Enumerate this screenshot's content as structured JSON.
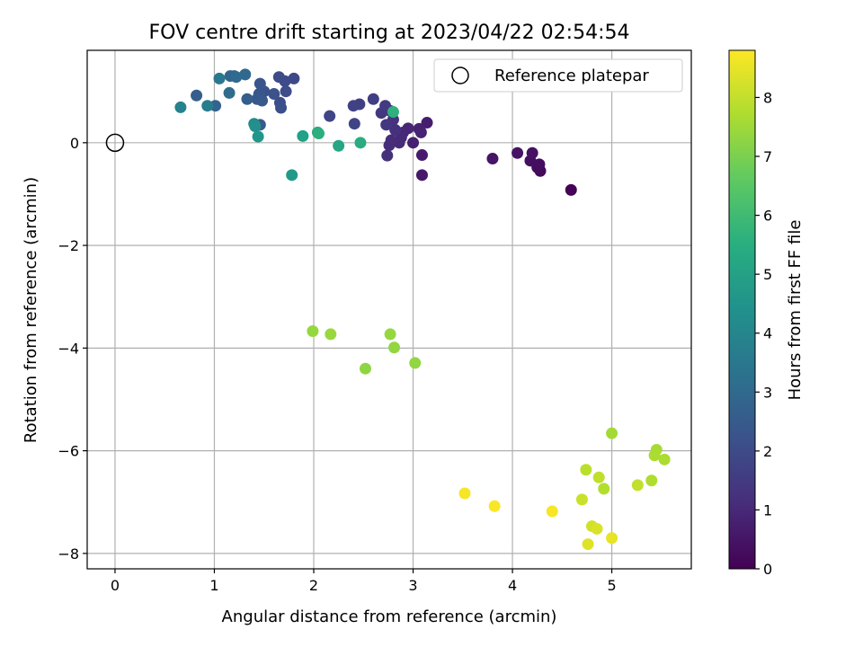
{
  "chart_data": {
    "type": "scatter",
    "title": "FOV centre drift starting at 2023/04/22 02:54:54",
    "xlabel": "Angular distance from reference (arcmin)",
    "ylabel": "Rotation from reference (arcmin)",
    "xlim": [
      -0.28,
      5.8
    ],
    "ylim": [
      -8.3,
      1.8
    ],
    "xticks": [
      "0",
      "1",
      "2",
      "3",
      "4",
      "5"
    ],
    "yticks": [
      "−8",
      "−6",
      "−4",
      "−2",
      "0"
    ],
    "grid": true,
    "legend": {
      "placement": "top-right",
      "entries": [
        "Reference platepar"
      ]
    },
    "reference_point": {
      "x": 0,
      "y": 0
    },
    "colorbar": {
      "label": "Hours from first FF file",
      "range": [
        0,
        8.8
      ],
      "ticks": [
        "0",
        "1",
        "2",
        "3",
        "4",
        "5",
        "6",
        "7",
        "8"
      ],
      "colormap": "viridis"
    },
    "points": [
      {
        "x": 4.59,
        "y": -0.92,
        "h": 0.05
      },
      {
        "x": 4.28,
        "y": -0.55,
        "h": 0.2
      },
      {
        "x": 4.25,
        "y": -0.48,
        "h": 0.25
      },
      {
        "x": 4.27,
        "y": -0.42,
        "h": 0.3
      },
      {
        "x": 4.18,
        "y": -0.35,
        "h": 0.35
      },
      {
        "x": 4.2,
        "y": -0.2,
        "h": 0.4
      },
      {
        "x": 4.05,
        "y": -0.2,
        "h": 0.45
      },
      {
        "x": 3.8,
        "y": -0.31,
        "h": 0.5
      },
      {
        "x": 3.09,
        "y": -0.63,
        "h": 0.6
      },
      {
        "x": 3.09,
        "y": -0.24,
        "h": 0.65
      },
      {
        "x": 3.14,
        "y": 0.39,
        "h": 0.7
      },
      {
        "x": 3.0,
        "y": 0.0,
        "h": 0.75
      },
      {
        "x": 3.06,
        "y": 0.27,
        "h": 0.8
      },
      {
        "x": 3.08,
        "y": 0.2,
        "h": 0.85
      },
      {
        "x": 2.95,
        "y": 0.28,
        "h": 0.9
      },
      {
        "x": 2.9,
        "y": 0.2,
        "h": 0.95
      },
      {
        "x": 2.88,
        "y": 0.1,
        "h": 1.0
      },
      {
        "x": 2.86,
        "y": 0.0,
        "h": 1.05
      },
      {
        "x": 2.78,
        "y": 0.05,
        "h": 1.1
      },
      {
        "x": 2.76,
        "y": -0.05,
        "h": 1.15
      },
      {
        "x": 2.74,
        "y": -0.25,
        "h": 1.2
      },
      {
        "x": 2.82,
        "y": 0.25,
        "h": 1.25
      },
      {
        "x": 2.8,
        "y": 0.45,
        "h": 1.3
      },
      {
        "x": 2.77,
        "y": 0.62,
        "h": 1.35
      },
      {
        "x": 2.73,
        "y": 0.35,
        "h": 1.4
      },
      {
        "x": 2.68,
        "y": 0.58,
        "h": 1.45
      },
      {
        "x": 2.72,
        "y": 0.72,
        "h": 1.5
      },
      {
        "x": 2.6,
        "y": 0.85,
        "h": 1.6
      },
      {
        "x": 2.46,
        "y": 0.75,
        "h": 1.65
      },
      {
        "x": 2.4,
        "y": 0.72,
        "h": 1.7
      },
      {
        "x": 2.41,
        "y": 0.37,
        "h": 1.75
      },
      {
        "x": 2.16,
        "y": 0.52,
        "h": 1.8
      },
      {
        "x": 1.8,
        "y": 1.25,
        "h": 1.9
      },
      {
        "x": 1.71,
        "y": 1.2,
        "h": 1.95
      },
      {
        "x": 1.65,
        "y": 1.28,
        "h": 2.0
      },
      {
        "x": 1.72,
        "y": 1.0,
        "h": 2.05
      },
      {
        "x": 1.66,
        "y": 0.78,
        "h": 2.1
      },
      {
        "x": 1.67,
        "y": 0.68,
        "h": 2.15
      },
      {
        "x": 1.6,
        "y": 0.95,
        "h": 2.2
      },
      {
        "x": 1.5,
        "y": 1.0,
        "h": 2.25
      },
      {
        "x": 1.46,
        "y": 1.15,
        "h": 2.3
      },
      {
        "x": 1.45,
        "y": 0.95,
        "h": 2.35
      },
      {
        "x": 1.43,
        "y": 0.85,
        "h": 2.4
      },
      {
        "x": 1.48,
        "y": 0.82,
        "h": 2.45
      },
      {
        "x": 1.46,
        "y": 0.35,
        "h": 2.5
      },
      {
        "x": 1.33,
        "y": 0.85,
        "h": 2.6
      },
      {
        "x": 1.2,
        "y": 1.3,
        "h": 2.75
      },
      {
        "x": 1.16,
        "y": 1.3,
        "h": 2.85
      },
      {
        "x": 1.31,
        "y": 1.33,
        "h": 2.95
      },
      {
        "x": 1.22,
        "y": 1.28,
        "h": 3.0
      },
      {
        "x": 0.82,
        "y": 0.92,
        "h": 2.6
      },
      {
        "x": 1.01,
        "y": 0.72,
        "h": 2.8
      },
      {
        "x": 1.15,
        "y": 0.97,
        "h": 3.1
      },
      {
        "x": 1.05,
        "y": 1.25,
        "h": 3.5
      },
      {
        "x": 0.93,
        "y": 0.72,
        "h": 3.7
      },
      {
        "x": 0.66,
        "y": 0.69,
        "h": 3.9
      },
      {
        "x": 1.4,
        "y": 0.37,
        "h": 4.2
      },
      {
        "x": 1.41,
        "y": 0.32,
        "h": 4.4
      },
      {
        "x": 1.44,
        "y": 0.12,
        "h": 4.6
      },
      {
        "x": 1.78,
        "y": -0.63,
        "h": 4.7
      },
      {
        "x": 1.89,
        "y": 0.13,
        "h": 5.0
      },
      {
        "x": 2.04,
        "y": 0.2,
        "h": 5.3
      },
      {
        "x": 2.05,
        "y": 0.18,
        "h": 5.5
      },
      {
        "x": 2.25,
        "y": -0.06,
        "h": 5.2
      },
      {
        "x": 2.47,
        "y": 0.0,
        "h": 5.4
      },
      {
        "x": 2.8,
        "y": 0.6,
        "h": 5.6
      },
      {
        "x": 1.99,
        "y": -3.67,
        "h": 7.4
      },
      {
        "x": 2.17,
        "y": -3.73,
        "h": 7.45
      },
      {
        "x": 2.77,
        "y": -3.73,
        "h": 7.4
      },
      {
        "x": 2.81,
        "y": -3.99,
        "h": 7.35
      },
      {
        "x": 2.52,
        "y": -4.4,
        "h": 7.3
      },
      {
        "x": 3.02,
        "y": -4.29,
        "h": 7.35
      },
      {
        "x": 5.0,
        "y": -5.66,
        "h": 7.6
      },
      {
        "x": 5.45,
        "y": -5.98,
        "h": 7.65
      },
      {
        "x": 5.43,
        "y": -6.09,
        "h": 7.7
      },
      {
        "x": 5.53,
        "y": -6.17,
        "h": 7.7
      },
      {
        "x": 4.74,
        "y": -6.37,
        "h": 7.9
      },
      {
        "x": 4.87,
        "y": -6.52,
        "h": 7.95
      },
      {
        "x": 5.4,
        "y": -6.58,
        "h": 7.75
      },
      {
        "x": 5.26,
        "y": -6.67,
        "h": 8.0
      },
      {
        "x": 4.92,
        "y": -6.74,
        "h": 7.8
      },
      {
        "x": 4.7,
        "y": -6.95,
        "h": 8.1
      },
      {
        "x": 4.8,
        "y": -7.47,
        "h": 8.2
      },
      {
        "x": 4.85,
        "y": -7.52,
        "h": 8.3
      },
      {
        "x": 4.76,
        "y": -7.82,
        "h": 8.4
      },
      {
        "x": 5.0,
        "y": -7.7,
        "h": 8.5
      },
      {
        "x": 3.52,
        "y": -6.83,
        "h": 8.7
      },
      {
        "x": 3.82,
        "y": -7.08,
        "h": 8.75
      },
      {
        "x": 4.4,
        "y": -7.18,
        "h": 8.7
      }
    ]
  }
}
